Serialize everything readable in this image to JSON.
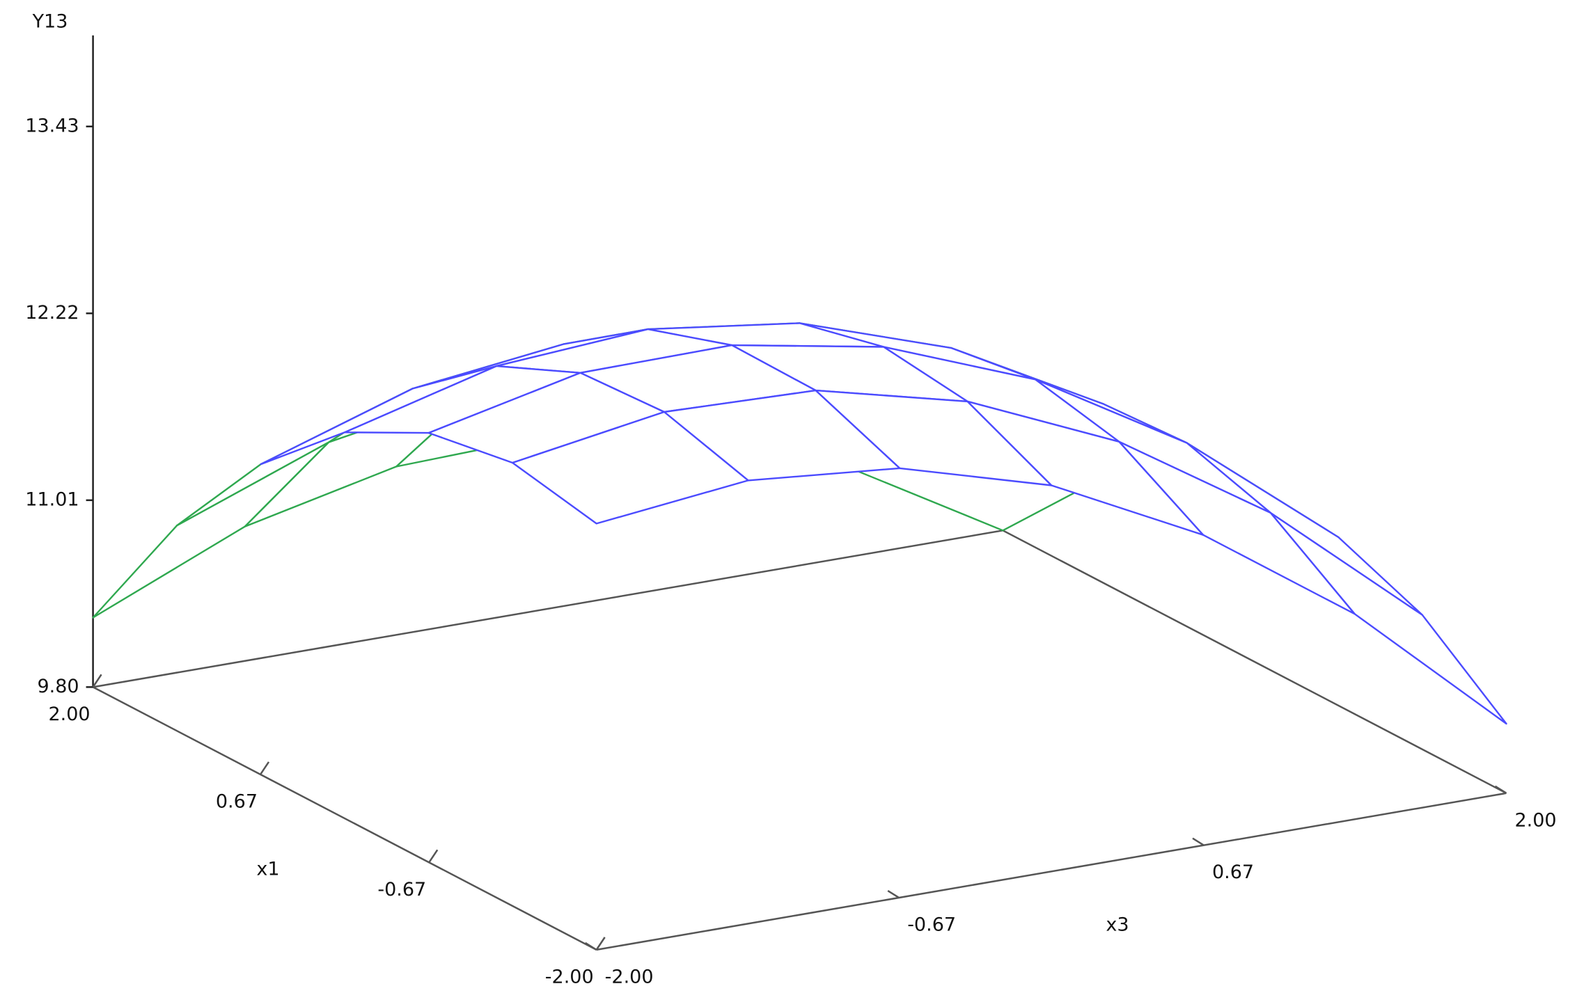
{
  "chart_data": {
    "type": "surface",
    "z_label": "Y13",
    "x1_label": "x1",
    "x3_label": "x3",
    "x1": [
      -2,
      -1.333,
      -0.667,
      0,
      0.667,
      1.333,
      2
    ],
    "x3": [
      -2,
      -1.333,
      -0.667,
      0,
      0.667,
      1.333,
      2
    ],
    "z": [
      [
        12.56,
        12.67,
        12.58,
        12.3,
        11.81,
        11.13,
        10.25
      ],
      [
        12.67,
        12.83,
        12.8,
        12.56,
        12.13,
        11.5,
        10.67
      ],
      [
        12.58,
        12.8,
        12.81,
        12.63,
        12.25,
        11.67,
        10.89
      ],
      [
        12.3,
        12.56,
        12.63,
        12.5,
        12.17,
        11.64,
        10.92
      ],
      [
        11.81,
        12.13,
        12.25,
        12.17,
        11.89,
        11.42,
        10.74
      ],
      [
        11.13,
        11.5,
        11.67,
        11.64,
        11.42,
        10.99,
        10.37
      ],
      [
        10.25,
        10.67,
        10.89,
        10.92,
        10.74,
        10.37,
        9.8
      ]
    ],
    "zlim": [
      9.8,
      14.02
    ],
    "zticks": [
      {
        "value": 9.8,
        "label": "9.80"
      },
      11.01,
      12.22,
      13.43
    ],
    "x1lim": [
      -2,
      2
    ],
    "x1ticks": [
      {
        "value": 2,
        "label": "2.00"
      },
      {
        "value": 0.67,
        "label": "0.67"
      },
      {
        "value": -0.67,
        "label": "-0.67"
      },
      {
        "value": -2,
        "label": "-2.00"
      }
    ],
    "x3lim": [
      -2,
      2
    ],
    "x3ticks": [
      {
        "value": -2,
        "label": "-2.00"
      },
      {
        "value": -0.67,
        "label": "-0.67"
      },
      {
        "value": 0.67,
        "label": "0.67"
      },
      {
        "value": 2,
        "label": "2.00"
      }
    ],
    "top_color": "#4b4bff",
    "under_color": "#2fa84f",
    "axis_color": "#555555"
  }
}
